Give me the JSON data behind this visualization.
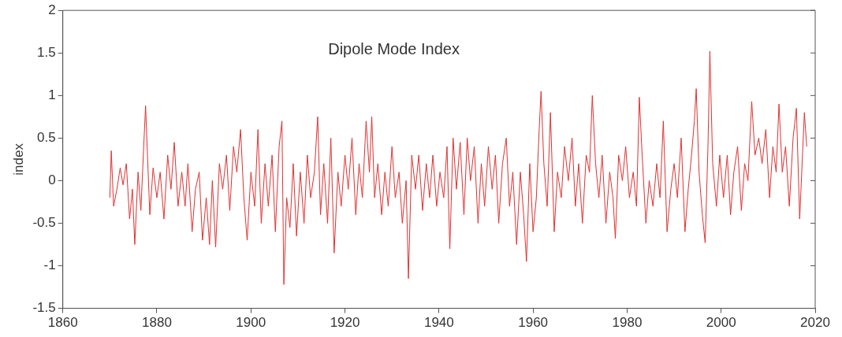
{
  "chart_data": {
    "type": "line",
    "title": "Dipole Mode Index",
    "ylabel": "index",
    "xlim": [
      1860,
      2020
    ],
    "xticks": [
      1860,
      1880,
      1900,
      1920,
      1940,
      1960,
      1980,
      2000,
      2020
    ],
    "ylim": [
      -1.5,
      2
    ],
    "yticks": [
      -1.5,
      -1,
      -0.5,
      0,
      0.5,
      1,
      1.5,
      2
    ],
    "grid": false,
    "legend": false,
    "marker": "none",
    "line_style": "solid",
    "series": [
      {
        "color": "#e03030",
        "x": [
          1870.0,
          1870.3,
          1870.8,
          1871.5,
          1872.2,
          1872.8,
          1873.5,
          1874.2,
          1874.8,
          1875.3,
          1876.0,
          1876.6,
          1877.2,
          1877.6,
          1878.0,
          1878.5,
          1879.2,
          1880.0,
          1880.7,
          1881.5,
          1882.3,
          1883.0,
          1883.7,
          1884.5,
          1885.3,
          1886.0,
          1886.6,
          1887.5,
          1888.2,
          1889.0,
          1889.7,
          1890.5,
          1891.2,
          1891.8,
          1892.5,
          1893.3,
          1894.0,
          1894.8,
          1895.5,
          1896.3,
          1897.0,
          1897.8,
          1898.5,
          1899.2,
          1900.0,
          1900.8,
          1901.5,
          1902.2,
          1903.0,
          1903.7,
          1904.5,
          1905.2,
          1906.0,
          1906.6,
          1907.0,
          1907.6,
          1908.3,
          1909.0,
          1909.7,
          1910.5,
          1911.3,
          1912.0,
          1912.7,
          1913.5,
          1914.2,
          1914.8,
          1915.5,
          1916.3,
          1917.0,
          1917.7,
          1918.5,
          1919.2,
          1920.0,
          1920.7,
          1921.5,
          1922.3,
          1923.0,
          1923.7,
          1924.5,
          1925.2,
          1925.7,
          1926.3,
          1927.0,
          1927.8,
          1928.5,
          1929.2,
          1930.0,
          1930.7,
          1931.5,
          1932.2,
          1933.0,
          1933.5,
          1934.2,
          1935.0,
          1935.7,
          1936.5,
          1937.3,
          1938.0,
          1938.7,
          1939.5,
          1940.2,
          1941.0,
          1941.7,
          1942.3,
          1943.0,
          1943.7,
          1944.5,
          1945.3,
          1946.0,
          1946.7,
          1947.5,
          1948.3,
          1949.0,
          1949.7,
          1950.5,
          1951.3,
          1952.0,
          1952.7,
          1953.5,
          1954.3,
          1955.0,
          1955.7,
          1956.5,
          1957.3,
          1958.0,
          1958.6,
          1959.3,
          1960.0,
          1960.7,
          1961.3,
          1961.7,
          1962.3,
          1963.0,
          1963.7,
          1964.5,
          1965.2,
          1966.0,
          1966.7,
          1967.5,
          1968.3,
          1969.0,
          1969.7,
          1970.5,
          1971.3,
          1972.0,
          1972.6,
          1973.3,
          1974.0,
          1974.7,
          1975.5,
          1976.3,
          1977.0,
          1977.5,
          1978.2,
          1979.0,
          1979.7,
          1980.5,
          1981.3,
          1982.0,
          1982.6,
          1983.2,
          1984.0,
          1984.7,
          1985.5,
          1986.3,
          1987.0,
          1987.7,
          1988.5,
          1989.3,
          1990.0,
          1990.7,
          1991.5,
          1992.3,
          1993.0,
          1993.7,
          1994.3,
          1994.7,
          1995.3,
          1996.0,
          1996.6,
          1997.2,
          1997.6,
          1998.2,
          1999.0,
          1999.7,
          2000.5,
          2001.3,
          2002.0,
          2002.7,
          2003.5,
          2004.3,
          2005.0,
          2005.7,
          2006.5,
          2007.2,
          2008.0,
          2008.7,
          2009.5,
          2010.3,
          2011.0,
          2011.7,
          2012.3,
          2013.0,
          2013.7,
          2014.5,
          2015.3,
          2016.0,
          2016.7,
          2017.3,
          2017.7,
          2018.2
        ],
        "values": [
          -0.2,
          0.35,
          -0.3,
          -0.1,
          0.15,
          -0.05,
          0.2,
          -0.45,
          -0.1,
          -0.75,
          0.1,
          -0.35,
          0.4,
          0.88,
          0.3,
          -0.4,
          0.15,
          -0.2,
          0.1,
          -0.45,
          0.3,
          -0.1,
          0.45,
          -0.3,
          0.1,
          -0.3,
          0.2,
          -0.6,
          -0.1,
          0.1,
          -0.7,
          -0.2,
          -0.75,
          0.0,
          -0.78,
          0.2,
          -0.1,
          0.3,
          -0.35,
          0.4,
          0.1,
          0.6,
          -0.2,
          -0.7,
          0.1,
          -0.3,
          0.6,
          -0.5,
          0.2,
          -0.3,
          0.3,
          -0.6,
          0.4,
          0.7,
          -1.22,
          -0.2,
          -0.55,
          0.2,
          -0.65,
          0.1,
          -0.5,
          0.3,
          -0.2,
          0.1,
          0.75,
          -0.4,
          0.2,
          -0.5,
          0.5,
          -0.85,
          0.1,
          -0.3,
          0.3,
          -0.1,
          0.5,
          -0.4,
          0.2,
          -0.2,
          0.7,
          0.1,
          0.75,
          -0.2,
          0.2,
          -0.4,
          0.1,
          -0.3,
          0.4,
          -0.2,
          0.1,
          -0.5,
          0.0,
          -1.15,
          0.3,
          -0.1,
          0.3,
          -0.35,
          0.2,
          -0.2,
          0.3,
          -0.3,
          0.1,
          -0.2,
          0.4,
          -0.8,
          0.5,
          -0.1,
          0.45,
          -0.4,
          0.5,
          0.0,
          0.4,
          -0.5,
          0.2,
          -0.3,
          0.4,
          -0.1,
          0.3,
          -0.5,
          0.2,
          0.5,
          -0.3,
          0.1,
          -0.75,
          0.1,
          -0.4,
          -0.95,
          0.2,
          -0.6,
          -0.2,
          0.6,
          1.05,
          0.2,
          -0.3,
          0.8,
          -0.6,
          0.1,
          -0.2,
          0.4,
          0.0,
          0.5,
          -0.3,
          0.2,
          -0.5,
          0.3,
          0.1,
          1.0,
          0.2,
          -0.2,
          0.3,
          -0.5,
          0.1,
          -0.2,
          -0.68,
          0.3,
          0.0,
          0.4,
          -0.2,
          0.1,
          -0.3,
          0.98,
          0.3,
          -0.5,
          0.0,
          -0.3,
          0.2,
          -0.2,
          0.7,
          -0.6,
          -0.1,
          0.2,
          -0.2,
          0.5,
          -0.6,
          -0.1,
          0.3,
          0.7,
          1.08,
          0.1,
          -0.4,
          -0.73,
          0.4,
          1.52,
          0.2,
          -0.3,
          0.3,
          -0.2,
          0.3,
          -0.4,
          0.1,
          0.4,
          -0.35,
          0.2,
          0.0,
          0.93,
          0.3,
          0.5,
          0.2,
          0.6,
          -0.2,
          0.4,
          0.1,
          0.9,
          0.1,
          0.4,
          -0.3,
          0.5,
          0.85,
          -0.45,
          0.3,
          0.8,
          0.4
        ]
      }
    ]
  }
}
